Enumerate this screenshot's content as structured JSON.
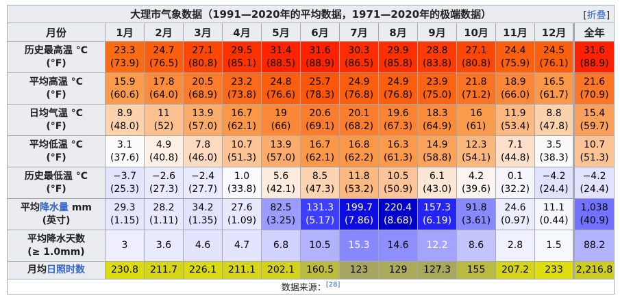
{
  "caption": {
    "title": "大理市气象数据（1991—2020年的平均数据，1971—2020年的极端数据）",
    "toggle_open": "[",
    "toggle_label": "折叠",
    "toggle_close": "]"
  },
  "header": {
    "first": "月份",
    "months": [
      "1月",
      "2月",
      "3月",
      "4月",
      "5月",
      "6月",
      "7月",
      "8月",
      "9月",
      "10月",
      "11月",
      "12月"
    ],
    "year": "全年"
  },
  "rows": [
    {
      "label_line1": "历史最高温 °C",
      "label_line2": "(°F)",
      "cells": [
        {
          "v": "23.3",
          "s": "(73.9)",
          "bg": "#fa6c14",
          "fg": "#000000"
        },
        {
          "v": "24.7",
          "s": "(76.5)",
          "bg": "#fb5e0e",
          "fg": "#000000"
        },
        {
          "v": "27.1",
          "s": "(80.8)",
          "bg": "#fd4707",
          "fg": "#000000"
        },
        {
          "v": "29.5",
          "s": "(85.1)",
          "bg": "#fe3200",
          "fg": "#000000"
        },
        {
          "v": "31.4",
          "s": "(88.5)",
          "bg": "#ff2400",
          "fg": "#000000"
        },
        {
          "v": "31.6",
          "s": "(88.9)",
          "bg": "#ff2200",
          "fg": "#000000"
        },
        {
          "v": "30.3",
          "s": "(86.5)",
          "bg": "#fe2d00",
          "fg": "#000000"
        },
        {
          "v": "29.9",
          "s": "(85.8)",
          "bg": "#fe3000",
          "fg": "#000000"
        },
        {
          "v": "28.8",
          "s": "(83.8)",
          "bg": "#fe3b04",
          "fg": "#000000"
        },
        {
          "v": "27.1",
          "s": "(80.8)",
          "bg": "#fd4707",
          "fg": "#000000"
        },
        {
          "v": "24.4",
          "s": "(75.9)",
          "bg": "#fb600f",
          "fg": "#000000"
        },
        {
          "v": "24.5",
          "s": "(76.1)",
          "bg": "#fb600f",
          "fg": "#000000"
        },
        {
          "v": "31.6",
          "s": "(88.9)",
          "bg": "#ff2200",
          "fg": "#000000"
        }
      ]
    },
    {
      "label_line1": "平均高温 °C",
      "label_line2": "(°F)",
      "cells": [
        {
          "v": "15.9",
          "s": "(60.6)",
          "bg": "#fb9c4c",
          "fg": "#000000"
        },
        {
          "v": "17.8",
          "s": "(64.0)",
          "bg": "#fb8c3c",
          "fg": "#000000"
        },
        {
          "v": "20.5",
          "s": "(68.9)",
          "bg": "#fb7c2c",
          "fg": "#000000"
        },
        {
          "v": "23.2",
          "s": "(73.8)",
          "bg": "#fb6a1a",
          "fg": "#000000"
        },
        {
          "v": "24.8",
          "s": "(76.6)",
          "bg": "#fb5e0e",
          "fg": "#000000"
        },
        {
          "v": "25.7",
          "s": "(78.3)",
          "bg": "#fc560a",
          "fg": "#000000"
        },
        {
          "v": "24.9",
          "s": "(76.8)",
          "bg": "#fb5e0e",
          "fg": "#000000"
        },
        {
          "v": "24.9",
          "s": "(76.8)",
          "bg": "#fb5e0e",
          "fg": "#000000"
        },
        {
          "v": "23.9",
          "s": "(75.0)",
          "bg": "#fb6414",
          "fg": "#000000"
        },
        {
          "v": "21.8",
          "s": "(71.2)",
          "bg": "#fb7424",
          "fg": "#000000"
        },
        {
          "v": "18.9",
          "s": "(66.0)",
          "bg": "#fb8838",
          "fg": "#000000"
        },
        {
          "v": "16.5",
          "s": "(61.7)",
          "bg": "#fb984a",
          "fg": "#000000"
        },
        {
          "v": "21.6",
          "s": "(70.9)",
          "bg": "#fb7626",
          "fg": "#000000"
        }
      ]
    },
    {
      "label_line1": "日均气温 °C",
      "label_line2": "(°F)",
      "cells": [
        {
          "v": "8.9",
          "s": "(48.0)",
          "bg": "#fcd2ac",
          "fg": "#000000"
        },
        {
          "v": "11",
          "s": "(52)",
          "bg": "#fcc190",
          "fg": "#000000"
        },
        {
          "v": "13.9",
          "s": "(57.0)",
          "bg": "#fbac6a",
          "fg": "#000000"
        },
        {
          "v": "16.7",
          "s": "(62.1)",
          "bg": "#fb9848",
          "fg": "#000000"
        },
        {
          "v": "19",
          "s": "(66)",
          "bg": "#fb8838",
          "fg": "#000000"
        },
        {
          "v": "20.6",
          "s": "(69.1)",
          "bg": "#fb7c2c",
          "fg": "#000000"
        },
        {
          "v": "20.1",
          "s": "(68.2)",
          "bg": "#fb7e2e",
          "fg": "#000000"
        },
        {
          "v": "19.6",
          "s": "(67.3)",
          "bg": "#fb8434",
          "fg": "#000000"
        },
        {
          "v": "18.3",
          "s": "(64.9)",
          "bg": "#fb8c3c",
          "fg": "#000000"
        },
        {
          "v": "16",
          "s": "(61)",
          "bg": "#fb9c4c",
          "fg": "#000000"
        },
        {
          "v": "11.9",
          "s": "(53.4)",
          "bg": "#fcba82",
          "fg": "#000000"
        },
        {
          "v": "8.8",
          "s": "(47.8)",
          "bg": "#fcd2ac",
          "fg": "#000000"
        },
        {
          "v": "15.4",
          "s": "(59.7)",
          "bg": "#fba05a",
          "fg": "#000000"
        }
      ]
    },
    {
      "label_line1": "平均低温 °C",
      "label_line2": "(°F)",
      "cells": [
        {
          "v": "3.1",
          "s": "(37.6)",
          "bg": "#fcfcfc",
          "fg": "#000000"
        },
        {
          "v": "4.9",
          "s": "(40.8)",
          "bg": "#fcf0e4",
          "fg": "#000000"
        },
        {
          "v": "7.8",
          "s": "(46.0)",
          "bg": "#fcdac0",
          "fg": "#000000"
        },
        {
          "v": "10.7",
          "s": "(51.3)",
          "bg": "#fcc494",
          "fg": "#000000"
        },
        {
          "v": "13.9",
          "s": "(57.0)",
          "bg": "#fbac6a",
          "fg": "#000000"
        },
        {
          "v": "16.7",
          "s": "(62.1)",
          "bg": "#fb9848",
          "fg": "#000000"
        },
        {
          "v": "16.8",
          "s": "(62.2)",
          "bg": "#fb9848",
          "fg": "#000000"
        },
        {
          "v": "16.3",
          "s": "(61.3)",
          "bg": "#fb9a4a",
          "fg": "#000000"
        },
        {
          "v": "14.9",
          "s": "(58.8)",
          "bg": "#fba45e",
          "fg": "#000000"
        },
        {
          "v": "12.3",
          "s": "(54.1)",
          "bg": "#fcb87c",
          "fg": "#000000"
        },
        {
          "v": "7.1",
          "s": "(44.8)",
          "bg": "#fce0ca",
          "fg": "#000000"
        },
        {
          "v": "3.5",
          "s": "(38.3)",
          "bg": "#fcfaf8",
          "fg": "#000000"
        },
        {
          "v": "10.7",
          "s": "(51.3)",
          "bg": "#fcc494",
          "fg": "#000000"
        }
      ]
    },
    {
      "label_line1": "历史最低温 °C",
      "label_line2": "(°F)",
      "cells": [
        {
          "v": "−3.7",
          "s": "(25.3)",
          "bg": "#e4e4ff",
          "fg": "#000000"
        },
        {
          "v": "−2.6",
          "s": "(27.3)",
          "bg": "#eaeaff",
          "fg": "#000000"
        },
        {
          "v": "−2.4",
          "s": "(27.7)",
          "bg": "#ebebff",
          "fg": "#000000"
        },
        {
          "v": "1.0",
          "s": "(33.8)",
          "bg": "#fafaff",
          "fg": "#000000"
        },
        {
          "v": "5.6",
          "s": "(42.1)",
          "bg": "#fcece0",
          "fg": "#000000"
        },
        {
          "v": "8.5",
          "s": "(47.3)",
          "bg": "#fcd4b2",
          "fg": "#000000"
        },
        {
          "v": "11.8",
          "s": "(53.2)",
          "bg": "#fcba82",
          "fg": "#000000"
        },
        {
          "v": "10.5",
          "s": "(50.9)",
          "bg": "#fcc498",
          "fg": "#000000"
        },
        {
          "v": "6.1",
          "s": "(43.0)",
          "bg": "#fce6d4",
          "fg": "#000000"
        },
        {
          "v": "4.2",
          "s": "(39.6)",
          "bg": "#fcf4ee",
          "fg": "#000000"
        },
        {
          "v": "0.1",
          "s": "(32.2)",
          "bg": "#f6f6ff",
          "fg": "#000000"
        },
        {
          "v": "−4.2",
          "s": "(24.4)",
          "bg": "#e2e2ff",
          "fg": "#000000"
        },
        {
          "v": "−4.2",
          "s": "(24.4)",
          "bg": "#e2e2ff",
          "fg": "#000000"
        }
      ]
    },
    {
      "label_pre": "平均",
      "label_link": "降水量",
      "label_post": " mm",
      "label_line2": "(英寸)",
      "cells": [
        {
          "v": "29.3",
          "s": "(1.15)",
          "bg": "#e6e6ff",
          "fg": "#000000"
        },
        {
          "v": "28.2",
          "s": "(1.11)",
          "bg": "#e8e8ff",
          "fg": "#000000"
        },
        {
          "v": "34.2",
          "s": "(1.35)",
          "bg": "#e2e2ff",
          "fg": "#000000"
        },
        {
          "v": "27.6",
          "s": "(1.09)",
          "bg": "#e8e8ff",
          "fg": "#000000"
        },
        {
          "v": "82.5",
          "s": "(3.25)",
          "bg": "#9c9cff",
          "fg": "#000000"
        },
        {
          "v": "131.3",
          "s": "(5.17)",
          "bg": "#3e3eff",
          "fg": "#ffffff"
        },
        {
          "v": "199.7",
          "s": "(7.86)",
          "bg": "#0c0ce0",
          "fg": "#ffffff"
        },
        {
          "v": "220.4",
          "s": "(8.68)",
          "bg": "#0000c8",
          "fg": "#ffffff"
        },
        {
          "v": "157.3",
          "s": "(6.19)",
          "bg": "#2424f4",
          "fg": "#ffffff"
        },
        {
          "v": "91.8",
          "s": "(3.61)",
          "bg": "#8888ff",
          "fg": "#000000"
        },
        {
          "v": "24.6",
          "s": "(0.97)",
          "bg": "#ececff",
          "fg": "#000000"
        },
        {
          "v": "11.1",
          "s": "(0.44)",
          "bg": "#f6f6ff",
          "fg": "#000000"
        },
        {
          "v": "1,038",
          "s": "(40.9)",
          "bg": "#7272ff",
          "fg": "#000000"
        }
      ]
    },
    {
      "label_line1": "平均降水天数",
      "label_line2": "(≥ 1.0mm)",
      "cells": [
        {
          "v": "3",
          "bg": "#eeeeff",
          "fg": "#000000"
        },
        {
          "v": "3.6",
          "bg": "#eaeaff",
          "fg": "#000000"
        },
        {
          "v": "4.6",
          "bg": "#e4e4ff",
          "fg": "#000000"
        },
        {
          "v": "4.7",
          "bg": "#e4e4ff",
          "fg": "#000000"
        },
        {
          "v": "6.8",
          "bg": "#d2d2ff",
          "fg": "#000000"
        },
        {
          "v": "10.5",
          "bg": "#b2b2ff",
          "fg": "#000000"
        },
        {
          "v": "15.3",
          "bg": "#8888ff",
          "fg": "#ffffff"
        },
        {
          "v": "14.6",
          "bg": "#8e8eff",
          "fg": "#000000"
        },
        {
          "v": "12.2",
          "bg": "#a4a4ff",
          "fg": "#ffffff"
        },
        {
          "v": "8.6",
          "bg": "#c4c4ff",
          "fg": "#000000"
        },
        {
          "v": "2.8",
          "bg": "#f0f0ff",
          "fg": "#000000"
        },
        {
          "v": "1.5",
          "bg": "#f8f8ff",
          "fg": "#000000"
        },
        {
          "v": "88.2",
          "bg": "#b2b2ff",
          "fg": "#000000"
        }
      ]
    },
    {
      "label_pre": "月均",
      "label_link": "日照时数",
      "label_post": "",
      "cells": [
        {
          "v": "230.8",
          "bg": "#dcdc10",
          "fg": "#000000"
        },
        {
          "v": "211.7",
          "bg": "#d6d618",
          "fg": "#000000"
        },
        {
          "v": "226.1",
          "bg": "#dada12",
          "fg": "#000000"
        },
        {
          "v": "211.1",
          "bg": "#d6d618",
          "fg": "#000000"
        },
        {
          "v": "202.1",
          "bg": "#d2d21c",
          "fg": "#000000"
        },
        {
          "v": "160.5",
          "bg": "#bcbc3c",
          "fg": "#000000"
        },
        {
          "v": "123",
          "bg": "#a6a662",
          "fg": "#000000"
        },
        {
          "v": "129",
          "bg": "#aaaa5a",
          "fg": "#000000"
        },
        {
          "v": "127.3",
          "bg": "#a8a85c",
          "fg": "#000000"
        },
        {
          "v": "155",
          "bg": "#baba42",
          "fg": "#000000"
        },
        {
          "v": "207.2",
          "bg": "#d4d41a",
          "fg": "#000000"
        },
        {
          "v": "233",
          "bg": "#dede0e",
          "fg": "#000000"
        },
        {
          "v": "2,216.8",
          "bg": "#cccc22",
          "fg": "#000000"
        }
      ]
    }
  ],
  "footer": {
    "source_label": "数据来源：",
    "ref": "[28]"
  }
}
